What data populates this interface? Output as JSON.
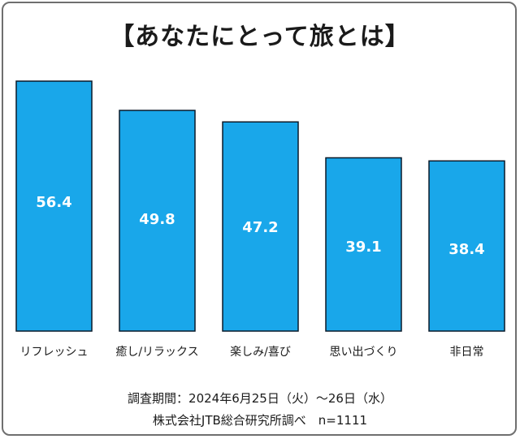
{
  "title": "【あなたにとって旅とは】",
  "footer": {
    "line1": "調査期間：2024年6月25日（火）～26日（水）",
    "line2": "株式会社JTB総合研究所調べ　n=1111"
  },
  "colors": {
    "bar_fill": "#19a7ea",
    "bar_stroke": "#0a1a2a",
    "label_text": "#ffffff"
  },
  "chart_data": {
    "type": "bar",
    "title": "【あなたにとって旅とは】",
    "categories": [
      "リフレッシュ",
      "癒し/リラックス",
      "楽しみ/喜び",
      "思い出づくり",
      "非日常"
    ],
    "values": [
      56.4,
      49.8,
      47.2,
      39.1,
      38.4
    ],
    "value_labels": [
      "56.4",
      "49.8",
      "47.2",
      "39.1",
      "38.4"
    ],
    "xlabel": "",
    "ylabel": "",
    "ylim": [
      0,
      60
    ],
    "grid": false,
    "legend": "none"
  }
}
